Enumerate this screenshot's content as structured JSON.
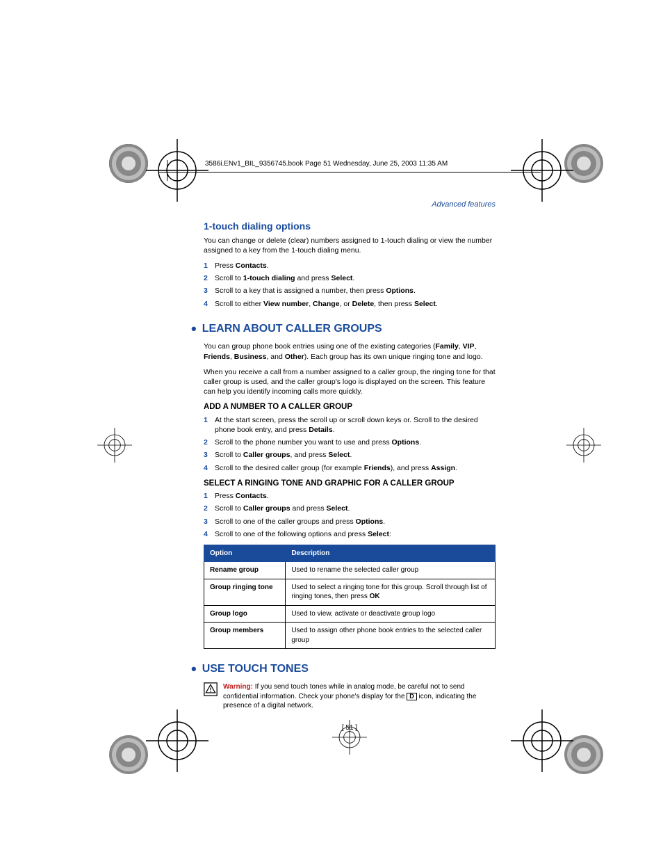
{
  "header_line": "3586i.ENv1_BIL_9356745.book  Page 51  Wednesday, June 25, 2003  11:35 AM",
  "right_header": "Advanced features",
  "s1": {
    "title": "1-touch dialing options",
    "intro": "You can change or delete (clear) numbers assigned to 1-touch dialing or view the number assigned to a key from the 1-touch dialing menu.",
    "steps": [
      [
        {
          "t": "Press "
        },
        {
          "t": "Contacts",
          "b": true
        },
        {
          "t": "."
        }
      ],
      [
        {
          "t": "Scroll to "
        },
        {
          "t": "1-touch dialing",
          "b": true
        },
        {
          "t": " and press "
        },
        {
          "t": "Select",
          "b": true
        },
        {
          "t": "."
        }
      ],
      [
        {
          "t": "Scroll to a key that is assigned a number, then press "
        },
        {
          "t": "Options",
          "b": true
        },
        {
          "t": "."
        }
      ],
      [
        {
          "t": "Scroll to either "
        },
        {
          "t": "View number",
          "b": true
        },
        {
          "t": ", "
        },
        {
          "t": "Change",
          "b": true
        },
        {
          "t": ", or "
        },
        {
          "t": "Delete",
          "b": true
        },
        {
          "t": ", then press "
        },
        {
          "t": "Select",
          "b": true
        },
        {
          "t": "."
        }
      ]
    ]
  },
  "s2": {
    "title": "LEARN ABOUT CALLER GROUPS",
    "p1": [
      {
        "t": "You can group phone book entries using one of the existing categories ("
      },
      {
        "t": "Family",
        "b": true
      },
      {
        "t": ", "
      },
      {
        "t": "VIP",
        "b": true
      },
      {
        "t": ", "
      },
      {
        "t": "Friends",
        "b": true
      },
      {
        "t": ", "
      },
      {
        "t": "Business",
        "b": true
      },
      {
        "t": ", and "
      },
      {
        "t": "Other",
        "b": true
      },
      {
        "t": "). Each group has its own unique ringing tone and logo."
      }
    ],
    "p2": "When you receive a call from a number assigned to a caller group, the ringing tone for that caller group is used, and the caller group's logo is displayed on the screen. This feature can help you identify incoming calls more quickly.",
    "sub1": {
      "title": "ADD A NUMBER TO A CALLER GROUP",
      "steps": [
        [
          {
            "t": "At the start screen, press the scroll up or scroll down keys or. Scroll to the desired phone book entry, and press "
          },
          {
            "t": "Details",
            "b": true
          },
          {
            "t": "."
          }
        ],
        [
          {
            "t": "Scroll to the phone number you want to use and press "
          },
          {
            "t": "Options",
            "b": true
          },
          {
            "t": "."
          }
        ],
        [
          {
            "t": "Scroll to "
          },
          {
            "t": "Caller groups",
            "b": true
          },
          {
            "t": ", and press "
          },
          {
            "t": "Select",
            "b": true
          },
          {
            "t": "."
          }
        ],
        [
          {
            "t": "Scroll to the desired caller group (for example "
          },
          {
            "t": "Friends",
            "b": true
          },
          {
            "t": "), and press "
          },
          {
            "t": "Assign",
            "b": true
          },
          {
            "t": "."
          }
        ]
      ]
    },
    "sub2": {
      "title": "SELECT A RINGING TONE AND GRAPHIC FOR A CALLER GROUP",
      "steps": [
        [
          {
            "t": "Press "
          },
          {
            "t": "Contacts",
            "b": true
          },
          {
            "t": "."
          }
        ],
        [
          {
            "t": "Scroll to "
          },
          {
            "t": "Caller groups",
            "b": true
          },
          {
            "t": " and press "
          },
          {
            "t": "Select",
            "b": true
          },
          {
            "t": "."
          }
        ],
        [
          {
            "t": "Scroll to one of the caller groups and press "
          },
          {
            "t": "Options",
            "b": true
          },
          {
            "t": "."
          }
        ],
        [
          {
            "t": "Scroll to one of the following options and press "
          },
          {
            "t": "Select",
            "b": true
          },
          {
            "t": ":"
          }
        ]
      ]
    },
    "table": {
      "head": [
        "Option",
        "Description"
      ],
      "rows": [
        [
          "Rename group",
          "Used to rename the selected caller group"
        ],
        [
          "Group ringing tone",
          [
            {
              "t": "Used to select a ringing tone for this group. Scroll through list of ringing tones, then press "
            },
            {
              "t": "OK",
              "b": true
            }
          ]
        ],
        [
          "Group logo",
          "Used to view, activate or deactivate group logo"
        ],
        [
          "Group members",
          "Used to assign other phone book entries to the selected caller group"
        ]
      ]
    }
  },
  "s3": {
    "title": "USE TOUCH TONES",
    "warning_label": "Warning:",
    "warning_pre": " If you send touch tones while in analog mode, be careful not to send confidential information. Check your phone's display for the ",
    "warning_icon_letter": "D",
    "warning_post": " icon, indicating the presence of a digital network."
  },
  "page_num": "[ 51 ]",
  "colors": {
    "blue": "#1a4b9b",
    "red": "#c02020"
  }
}
